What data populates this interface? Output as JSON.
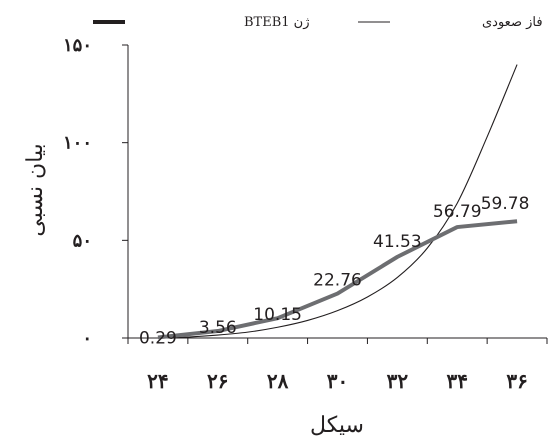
{
  "chart_data": {
    "type": "line",
    "xlabel": "سیکل",
    "ylabel": "بیان نسبی",
    "x": [
      24,
      26,
      28,
      30,
      32,
      34,
      36
    ],
    "x_tick_labels": [
      "۲۴",
      "۲۶",
      "۲۸",
      "۳۰",
      "۳۲",
      "۳۴",
      "۳۶"
    ],
    "y_ticks": [
      0,
      50,
      100,
      150
    ],
    "y_tick_labels": [
      "۰",
      "۵۰",
      "۱۰۰",
      "۱۵۰"
    ],
    "xlim": [
      23,
      37
    ],
    "ylim": [
      0,
      150
    ],
    "grid": false,
    "legend_position": "top",
    "series": [
      {
        "name": "ژن BTEB1",
        "x": [
          24,
          26,
          28,
          30,
          32,
          34,
          36
        ],
        "values": [
          0.29,
          3.56,
          10.15,
          22.76,
          41.53,
          56.79,
          59.78
        ],
        "data_labels": [
          "0.29",
          "3.56",
          "10.15",
          "22.76",
          "41.53",
          "56.79",
          "59.78"
        ],
        "color": "#6d6e71",
        "style": "thick"
      },
      {
        "name": "فاز صعودی",
        "x": [
          24,
          25,
          26,
          27,
          28,
          29,
          30,
          31,
          32,
          33,
          34,
          35,
          36
        ],
        "values": [
          0,
          0.5,
          1.5,
          3,
          5.5,
          9,
          14,
          21,
          31,
          46,
          69,
          103,
          140
        ],
        "color": "#231f20",
        "style": "thin"
      }
    ]
  }
}
